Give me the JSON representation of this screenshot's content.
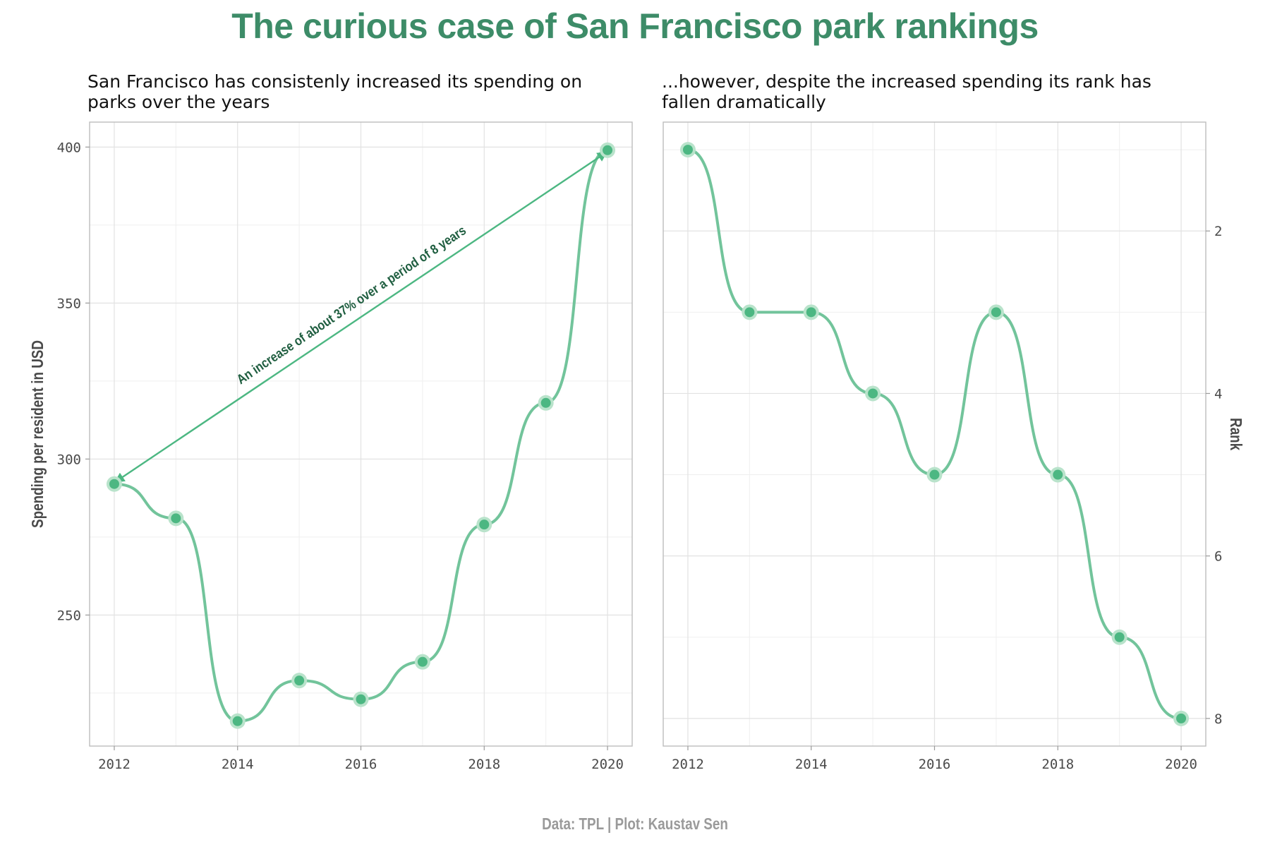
{
  "title": "The curious case of San Francisco park rankings",
  "caption": "Data: TPL | Plot: Kaustav Sen",
  "colors": {
    "title": "#3d8c68",
    "line": "#72c49b",
    "point": "#4cb782",
    "point_halo": "#b9e3cb",
    "arrow": "#4cb782",
    "annotation": "#1f5e40"
  },
  "chart_data": [
    {
      "type": "line",
      "subtitle": "San Francisco has consistenly increased its spending on\nparks over the years",
      "xlabel": "",
      "ylabel": "Spending per resident in USD",
      "x": [
        2012,
        2013,
        2014,
        2015,
        2016,
        2017,
        2018,
        2019,
        2020
      ],
      "values": [
        292,
        281,
        216,
        229,
        223,
        235,
        279,
        318,
        399
      ],
      "xlim": [
        2011.6,
        2020.4
      ],
      "ylim": [
        208,
        408
      ],
      "x_ticks": [
        2012,
        2014,
        2016,
        2018,
        2020
      ],
      "y_ticks": [
        250,
        300,
        350,
        400
      ],
      "grid": true,
      "annotation": {
        "text": "An increase of about 37% over a period of 8 years",
        "from": [
          2012,
          292
        ],
        "to": [
          2020,
          399
        ]
      }
    },
    {
      "type": "line",
      "subtitle": "...however, despite the increased spending its rank has\nfallen dramatically",
      "xlabel": "",
      "ylabel": "Rank",
      "y_axis_position": "right",
      "y_reversed": true,
      "x": [
        2012,
        2013,
        2014,
        2015,
        2016,
        2017,
        2018,
        2019,
        2020
      ],
      "values": [
        1,
        3,
        3,
        4,
        5,
        3,
        5,
        7,
        8
      ],
      "xlim": [
        2011.6,
        2020.4
      ],
      "ylim": [
        0.66,
        8.34
      ],
      "x_ticks": [
        2012,
        2014,
        2016,
        2018,
        2020
      ],
      "y_ticks": [
        2,
        4,
        6,
        8
      ],
      "grid": true
    }
  ]
}
